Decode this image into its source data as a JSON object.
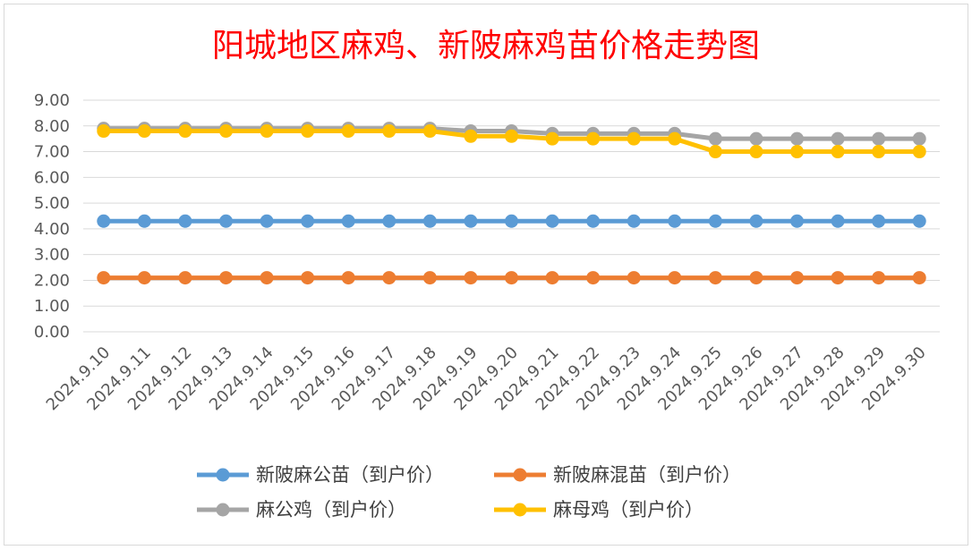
{
  "chart_data": {
    "type": "line",
    "title": "阳城地区麻鸡、新陂麻鸡苗价格走势图",
    "xlabel": "",
    "ylabel": "",
    "ylim": [
      0,
      9
    ],
    "yticks": [
      "0.00",
      "1.00",
      "2.00",
      "3.00",
      "4.00",
      "5.00",
      "6.00",
      "7.00",
      "8.00",
      "9.00"
    ],
    "grid": true,
    "legend_position": "bottom",
    "categories": [
      "2024.9.10",
      "2024.9.11",
      "2024.9.12",
      "2024.9.13",
      "2024.9.14",
      "2024.9.15",
      "2024.9.16",
      "2024.9.17",
      "2024.9.18",
      "2024.9.19",
      "2024.9.20",
      "2024.9.21",
      "2024.9.22",
      "2024.9.23",
      "2024.9.24",
      "2024.9.25",
      "2024.9.26",
      "2024.9.27",
      "2024.9.28",
      "2024.9.29",
      "2024.9.30"
    ],
    "series": [
      {
        "name": "新陂麻公苗（到户价）",
        "color": "#5b9bd5",
        "values": [
          4.3,
          4.3,
          4.3,
          4.3,
          4.3,
          4.3,
          4.3,
          4.3,
          4.3,
          4.3,
          4.3,
          4.3,
          4.3,
          4.3,
          4.3,
          4.3,
          4.3,
          4.3,
          4.3,
          4.3,
          4.3
        ]
      },
      {
        "name": "新陂麻混苗（到户价）",
        "color": "#ed7d31",
        "values": [
          2.1,
          2.1,
          2.1,
          2.1,
          2.1,
          2.1,
          2.1,
          2.1,
          2.1,
          2.1,
          2.1,
          2.1,
          2.1,
          2.1,
          2.1,
          2.1,
          2.1,
          2.1,
          2.1,
          2.1,
          2.1
        ]
      },
      {
        "name": "麻公鸡（到户价）",
        "color": "#a5a5a5",
        "values": [
          7.9,
          7.9,
          7.9,
          7.9,
          7.9,
          7.9,
          7.9,
          7.9,
          7.9,
          7.8,
          7.8,
          7.7,
          7.7,
          7.7,
          7.7,
          7.5,
          7.5,
          7.5,
          7.5,
          7.5,
          7.5
        ]
      },
      {
        "name": "麻母鸡（到户价）",
        "color": "#ffc000",
        "values": [
          7.8,
          7.8,
          7.8,
          7.8,
          7.8,
          7.8,
          7.8,
          7.8,
          7.8,
          7.6,
          7.6,
          7.5,
          7.5,
          7.5,
          7.5,
          7.0,
          7.0,
          7.0,
          7.0,
          7.0,
          7.0
        ]
      }
    ]
  }
}
